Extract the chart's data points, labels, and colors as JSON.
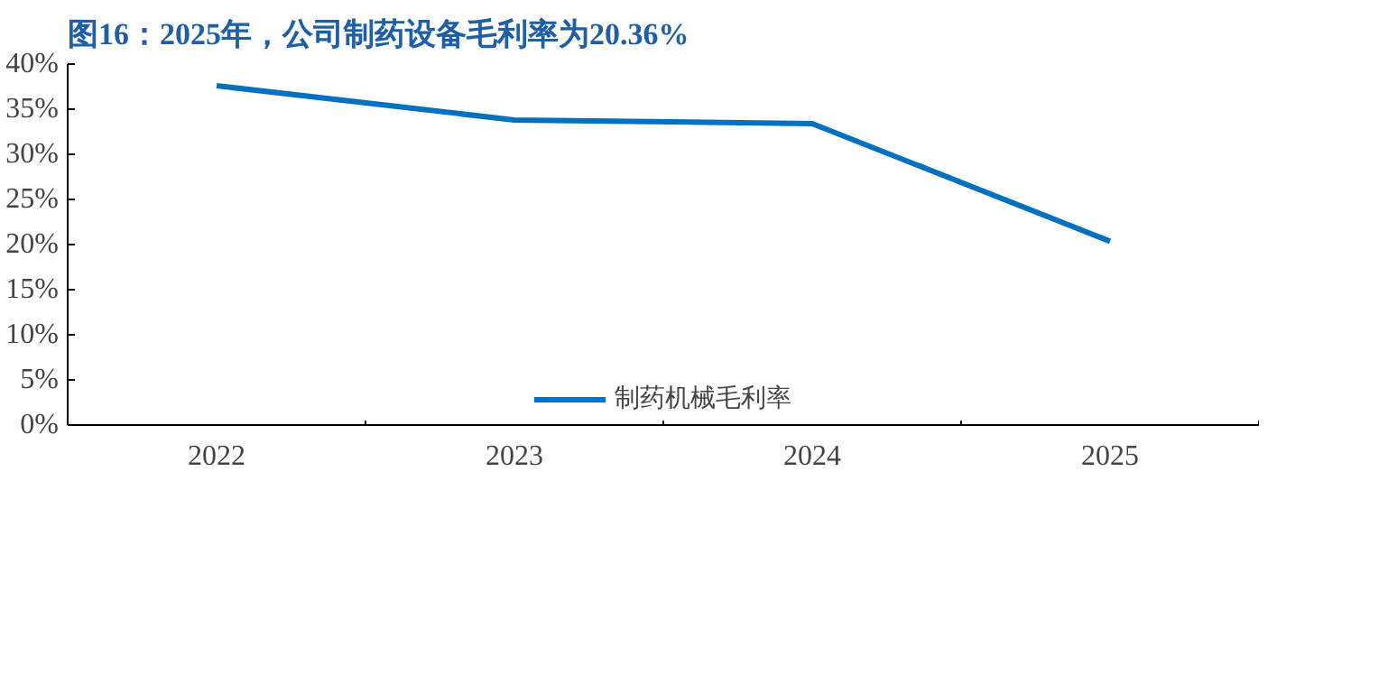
{
  "chart_data": {
    "type": "line",
    "title": "图16：2025年，公司制药设备毛利率为20.36%",
    "categories": [
      "2022",
      "2023",
      "2024",
      "2025"
    ],
    "series": [
      {
        "name": "制药机械毛利率",
        "color": "#0070c0",
        "values": [
          37.6,
          33.8,
          33.4,
          20.36
        ]
      }
    ],
    "ylim": [
      0,
      40
    ],
    "yticks": [
      {
        "value": 0,
        "label": "0%"
      },
      {
        "value": 5,
        "label": "5%"
      },
      {
        "value": 10,
        "label": "10%"
      },
      {
        "value": 15,
        "label": "15%"
      },
      {
        "value": 20,
        "label": "20%"
      },
      {
        "value": 25,
        "label": "25%"
      },
      {
        "value": 30,
        "label": "30%"
      },
      {
        "value": 35,
        "label": "35%"
      },
      {
        "value": 40,
        "label": "40%"
      }
    ],
    "grid": false,
    "legend": "bottom",
    "marker": "none",
    "line_style": "solid"
  }
}
